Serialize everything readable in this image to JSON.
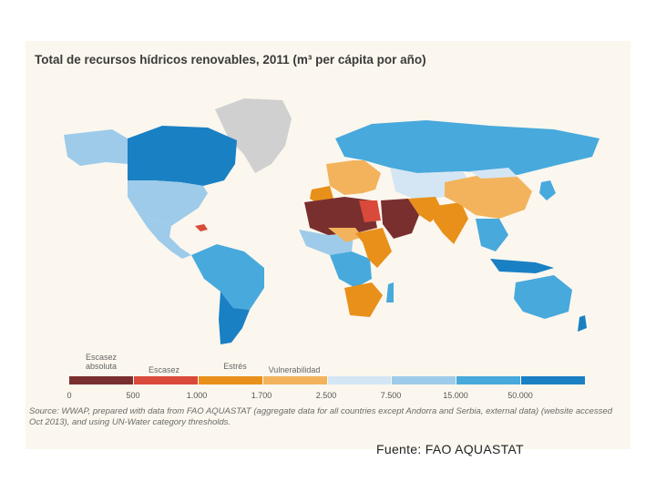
{
  "title": "Total de recursos hídricos renovables, 2011 (m³ per cápita por año)",
  "colors": {
    "absolute_scarcity": "#7a2f2f",
    "scarcity": "#d94a3a",
    "stress": "#e8901a",
    "vulnerability": "#f2b35c",
    "low1": "#d4e6f4",
    "low2": "#9ecbea",
    "mid": "#48a9dc",
    "high": "#1a80c4",
    "no_data": "#d0d0d0"
  },
  "legend": {
    "categories": [
      "Escasez absoluta",
      "Escasez",
      "Estrés",
      "Vulnerabilidad"
    ],
    "ticks": [
      "0",
      "500",
      "1.000",
      "1.700",
      "2.500",
      "7.500",
      "15.000",
      "50.000"
    ]
  },
  "source": "Source: WWAP, prepared with data from FAO AQUASTAT (aggregate data for all countries except Andorra and Serbia, external data) (website accessed Oct 2013), and using UN-Water category thresholds.",
  "footer": "Fuente: FAO AQUASTAT"
}
